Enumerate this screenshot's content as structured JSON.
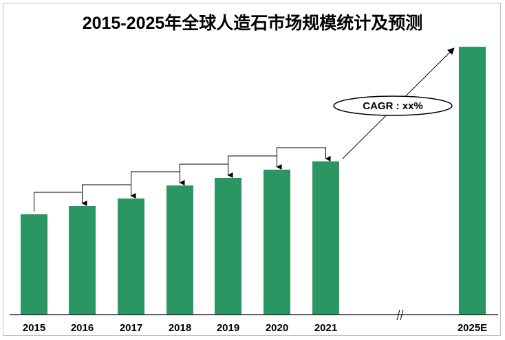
{
  "chart_data": {
    "type": "bar",
    "title": "2015-2025年全球人造石市场规模统计及预测",
    "categories": [
      "2015",
      "2016",
      "2017",
      "2018",
      "2019",
      "2020",
      "2021",
      "2025E"
    ],
    "values": [
      146,
      158,
      169,
      188,
      199,
      211,
      223,
      390
    ],
    "value_note_unit": "relative (no axis printed)",
    "annotation": "CAGR : xx%",
    "axis_break_between": [
      "2021",
      "2025E"
    ],
    "grid": false,
    "legend": "none",
    "bar_color": "#2a9762"
  }
}
